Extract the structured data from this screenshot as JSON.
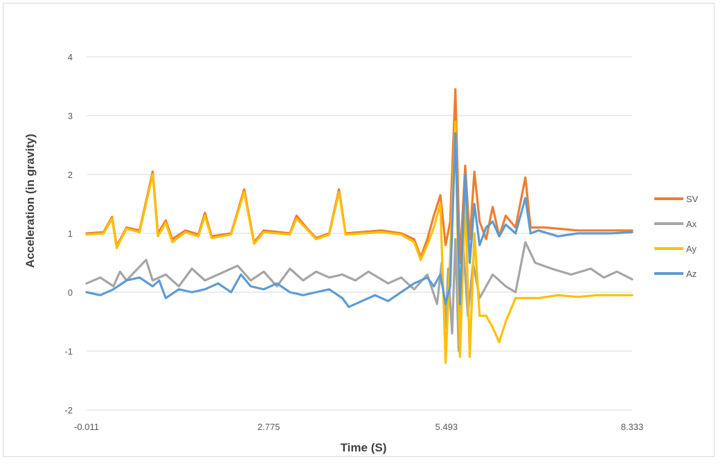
{
  "chart_data": {
    "type": "line",
    "title": "",
    "xlabel": "Time (S)",
    "ylabel": "Acceleration (in gravity)",
    "xlim": [
      -0.011,
      8.333
    ],
    "ylim": [
      -2,
      4
    ],
    "x_tick_labels": [
      "-0.011",
      "2.775",
      "5.493",
      "8.333"
    ],
    "x_tick_values": [
      -0.011,
      2.775,
      5.493,
      8.333
    ],
    "y_ticks": [
      -2,
      -1,
      0,
      1,
      2,
      3,
      4
    ],
    "grid": "horizontal",
    "legend_position": "right",
    "series": [
      {
        "name": "SV",
        "color": "#ED7D31",
        "points": [
          [
            -0.011,
            1.0
          ],
          [
            0.25,
            1.02
          ],
          [
            0.38,
            1.28
          ],
          [
            0.45,
            0.78
          ],
          [
            0.6,
            1.1
          ],
          [
            0.8,
            1.05
          ],
          [
            1.0,
            2.05
          ],
          [
            1.08,
            1.0
          ],
          [
            1.2,
            1.22
          ],
          [
            1.3,
            0.9
          ],
          [
            1.5,
            1.05
          ],
          [
            1.7,
            0.98
          ],
          [
            1.8,
            1.35
          ],
          [
            1.9,
            0.95
          ],
          [
            2.2,
            1.0
          ],
          [
            2.4,
            1.75
          ],
          [
            2.55,
            0.85
          ],
          [
            2.7,
            1.05
          ],
          [
            3.1,
            1.0
          ],
          [
            3.2,
            1.3
          ],
          [
            3.35,
            1.1
          ],
          [
            3.5,
            0.92
          ],
          [
            3.7,
            1.0
          ],
          [
            3.85,
            1.75
          ],
          [
            3.95,
            1.0
          ],
          [
            4.5,
            1.05
          ],
          [
            4.8,
            1.0
          ],
          [
            5.0,
            0.9
          ],
          [
            5.1,
            0.6
          ],
          [
            5.2,
            0.9
          ],
          [
            5.3,
            1.3
          ],
          [
            5.4,
            1.65
          ],
          [
            5.48,
            0.8
          ],
          [
            5.55,
            1.2
          ],
          [
            5.63,
            3.45
          ],
          [
            5.7,
            0.5
          ],
          [
            5.78,
            2.15
          ],
          [
            5.85,
            0.9
          ],
          [
            5.92,
            2.05
          ],
          [
            6.0,
            1.2
          ],
          [
            6.1,
            0.9
          ],
          [
            6.2,
            1.45
          ],
          [
            6.3,
            0.95
          ],
          [
            6.4,
            1.3
          ],
          [
            6.55,
            1.1
          ],
          [
            6.7,
            1.95
          ],
          [
            6.78,
            1.1
          ],
          [
            7.0,
            1.1
          ],
          [
            7.5,
            1.05
          ],
          [
            8.333,
            1.05
          ]
        ]
      },
      {
        "name": "Ax",
        "color": "#A5A5A5",
        "points": [
          [
            -0.011,
            0.15
          ],
          [
            0.2,
            0.25
          ],
          [
            0.4,
            0.1
          ],
          [
            0.5,
            0.35
          ],
          [
            0.6,
            0.2
          ],
          [
            0.9,
            0.55
          ],
          [
            1.0,
            0.2
          ],
          [
            1.2,
            0.3
          ],
          [
            1.4,
            0.1
          ],
          [
            1.6,
            0.4
          ],
          [
            1.8,
            0.2
          ],
          [
            2.0,
            0.3
          ],
          [
            2.3,
            0.45
          ],
          [
            2.5,
            0.2
          ],
          [
            2.7,
            0.35
          ],
          [
            2.9,
            0.1
          ],
          [
            3.1,
            0.4
          ],
          [
            3.3,
            0.2
          ],
          [
            3.5,
            0.35
          ],
          [
            3.7,
            0.25
          ],
          [
            3.9,
            0.3
          ],
          [
            4.1,
            0.2
          ],
          [
            4.3,
            0.35
          ],
          [
            4.6,
            0.15
          ],
          [
            4.8,
            0.25
          ],
          [
            5.0,
            0.05
          ],
          [
            5.2,
            0.3
          ],
          [
            5.35,
            -0.2
          ],
          [
            5.42,
            0.5
          ],
          [
            5.48,
            -0.6
          ],
          [
            5.52,
            0.4
          ],
          [
            5.58,
            -0.7
          ],
          [
            5.63,
            0.9
          ],
          [
            5.68,
            -1.0
          ],
          [
            5.75,
            0.8
          ],
          [
            5.82,
            -0.4
          ],
          [
            5.9,
            0.5
          ],
          [
            6.0,
            -0.1
          ],
          [
            6.2,
            0.3
          ],
          [
            6.4,
            0.1
          ],
          [
            6.55,
            0.0
          ],
          [
            6.7,
            0.85
          ],
          [
            6.85,
            0.5
          ],
          [
            7.1,
            0.4
          ],
          [
            7.4,
            0.3
          ],
          [
            7.7,
            0.4
          ],
          [
            7.9,
            0.25
          ],
          [
            8.1,
            0.35
          ],
          [
            8.333,
            0.22
          ]
        ]
      },
      {
        "name": "Ay",
        "color": "#FFC000",
        "points": [
          [
            -0.011,
            0.98
          ],
          [
            0.25,
            1.0
          ],
          [
            0.38,
            1.25
          ],
          [
            0.45,
            0.75
          ],
          [
            0.6,
            1.08
          ],
          [
            0.8,
            1.02
          ],
          [
            1.0,
            2.0
          ],
          [
            1.08,
            0.95
          ],
          [
            1.2,
            1.18
          ],
          [
            1.3,
            0.85
          ],
          [
            1.5,
            1.02
          ],
          [
            1.7,
            0.95
          ],
          [
            1.8,
            1.3
          ],
          [
            1.9,
            0.92
          ],
          [
            2.2,
            0.98
          ],
          [
            2.4,
            1.7
          ],
          [
            2.55,
            0.82
          ],
          [
            2.7,
            1.02
          ],
          [
            3.1,
            0.98
          ],
          [
            3.2,
            1.25
          ],
          [
            3.35,
            1.08
          ],
          [
            3.5,
            0.9
          ],
          [
            3.7,
            0.98
          ],
          [
            3.85,
            1.7
          ],
          [
            3.95,
            0.98
          ],
          [
            4.5,
            1.02
          ],
          [
            4.8,
            0.98
          ],
          [
            5.0,
            0.85
          ],
          [
            5.1,
            0.55
          ],
          [
            5.2,
            0.8
          ],
          [
            5.3,
            1.1
          ],
          [
            5.4,
            1.5
          ],
          [
            5.48,
            -1.2
          ],
          [
            5.55,
            0.6
          ],
          [
            5.63,
            2.9
          ],
          [
            5.7,
            -1.1
          ],
          [
            5.78,
            1.6
          ],
          [
            5.85,
            -1.1
          ],
          [
            5.92,
            1.0
          ],
          [
            6.0,
            -0.4
          ],
          [
            6.1,
            -0.4
          ],
          [
            6.2,
            -0.6
          ],
          [
            6.3,
            -0.85
          ],
          [
            6.4,
            -0.5
          ],
          [
            6.55,
            -0.1
          ],
          [
            6.7,
            -0.1
          ],
          [
            6.9,
            -0.1
          ],
          [
            7.2,
            -0.05
          ],
          [
            7.5,
            -0.08
          ],
          [
            7.8,
            -0.05
          ],
          [
            8.1,
            -0.05
          ],
          [
            8.333,
            -0.05
          ]
        ]
      },
      {
        "name": "Az",
        "color": "#5B9BD5",
        "points": [
          [
            -0.011,
            0.0
          ],
          [
            0.2,
            -0.05
          ],
          [
            0.4,
            0.05
          ],
          [
            0.6,
            0.2
          ],
          [
            0.8,
            0.25
          ],
          [
            1.0,
            0.1
          ],
          [
            1.1,
            0.2
          ],
          [
            1.2,
            -0.1
          ],
          [
            1.4,
            0.05
          ],
          [
            1.6,
            0.0
          ],
          [
            1.8,
            0.05
          ],
          [
            2.0,
            0.15
          ],
          [
            2.2,
            0.0
          ],
          [
            2.35,
            0.3
          ],
          [
            2.5,
            0.1
          ],
          [
            2.7,
            0.05
          ],
          [
            2.9,
            0.15
          ],
          [
            3.1,
            0.0
          ],
          [
            3.3,
            -0.05
          ],
          [
            3.5,
            0.0
          ],
          [
            3.7,
            0.05
          ],
          [
            3.9,
            -0.1
          ],
          [
            4.0,
            -0.25
          ],
          [
            4.2,
            -0.15
          ],
          [
            4.4,
            -0.05
          ],
          [
            4.6,
            -0.15
          ],
          [
            4.8,
            0.0
          ],
          [
            5.0,
            0.15
          ],
          [
            5.2,
            0.25
          ],
          [
            5.3,
            0.1
          ],
          [
            5.4,
            0.3
          ],
          [
            5.48,
            -0.2
          ],
          [
            5.55,
            0.1
          ],
          [
            5.63,
            2.7
          ],
          [
            5.7,
            -0.2
          ],
          [
            5.78,
            2.0
          ],
          [
            5.85,
            0.5
          ],
          [
            5.92,
            1.5
          ],
          [
            6.0,
            0.8
          ],
          [
            6.1,
            1.1
          ],
          [
            6.2,
            1.2
          ],
          [
            6.3,
            0.95
          ],
          [
            6.4,
            1.15
          ],
          [
            6.55,
            1.0
          ],
          [
            6.7,
            1.6
          ],
          [
            6.78,
            1.0
          ],
          [
            6.9,
            1.05
          ],
          [
            7.2,
            0.95
          ],
          [
            7.5,
            1.0
          ],
          [
            8.0,
            1.0
          ],
          [
            8.333,
            1.02
          ]
        ]
      }
    ]
  }
}
